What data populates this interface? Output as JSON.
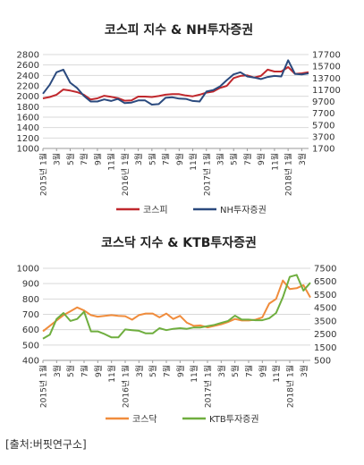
{
  "source": "[출처:버핏연구소]",
  "colors": {
    "red": "#c0282d",
    "navy": "#2b4a7e",
    "orange": "#f08c3c",
    "green": "#6fae3f",
    "grid": "#d9d9d9",
    "axis": "#999999"
  },
  "x_labels": [
    "2015년 1월",
    "3월",
    "5월",
    "7월",
    "9월",
    "11월",
    "2016년 1월",
    "3월",
    "5월",
    "7월",
    "9월",
    "11월",
    "2017년 1월",
    "3월",
    "5월",
    "7월",
    "9월",
    "11월",
    "2018년 1월",
    "3월"
  ],
  "chart_data": [
    {
      "type": "line",
      "title": "코스피 지수 & NH투자증권",
      "x": [
        "2015-01",
        "2015-02",
        "2015-03",
        "2015-04",
        "2015-05",
        "2015-06",
        "2015-07",
        "2015-08",
        "2015-09",
        "2015-10",
        "2015-11",
        "2015-12",
        "2016-01",
        "2016-02",
        "2016-03",
        "2016-04",
        "2016-05",
        "2016-06",
        "2016-07",
        "2016-08",
        "2016-09",
        "2016-10",
        "2016-11",
        "2016-12",
        "2017-01",
        "2017-02",
        "2017-03",
        "2017-04",
        "2017-05",
        "2017-06",
        "2017-07",
        "2017-08",
        "2017-09",
        "2017-10",
        "2017-11",
        "2017-12",
        "2018-01",
        "2018-02",
        "2018-03",
        "2018-04"
      ],
      "ylim_left": [
        1000,
        2800
      ],
      "yticks_left": [
        1000,
        1200,
        1400,
        1600,
        1800,
        2000,
        2200,
        2400,
        2600,
        2800
      ],
      "ylim_right": [
        1700,
        17700
      ],
      "yticks_right": [
        1700,
        3700,
        5700,
        7700,
        9700,
        11700,
        13700,
        15700,
        17700
      ],
      "legend_position": "bottom",
      "series": [
        {
          "name": "코스피",
          "axis": "left",
          "color_key": "red",
          "values": [
            1960,
            1985,
            2030,
            2130,
            2110,
            2080,
            2030,
            1940,
            1960,
            2010,
            1990,
            1965,
            1915,
            1920,
            1995,
            1995,
            1985,
            2005,
            2030,
            2040,
            2040,
            2015,
            2000,
            2030,
            2070,
            2090,
            2160,
            2200,
            2350,
            2390,
            2400,
            2360,
            2390,
            2510,
            2475,
            2475,
            2560,
            2430,
            2440,
            2460
          ]
        },
        {
          "name": "NH투자증권",
          "axis": "left",
          "color_key": "navy",
          "values": [
            2050,
            2220,
            2460,
            2510,
            2260,
            2160,
            2010,
            1900,
            1900,
            1940,
            1910,
            1950,
            1870,
            1880,
            1920,
            1920,
            1840,
            1850,
            1970,
            1980,
            1955,
            1950,
            1910,
            1900,
            2090,
            2120,
            2190,
            2310,
            2420,
            2460,
            2380,
            2360,
            2330,
            2370,
            2390,
            2380,
            2690,
            2430,
            2420,
            2440
          ]
        }
      ]
    },
    {
      "type": "line",
      "title": "코스닥 지수 & KTB투자증권",
      "x": [
        "2015-01",
        "2015-02",
        "2015-03",
        "2015-04",
        "2015-05",
        "2015-06",
        "2015-07",
        "2015-08",
        "2015-09",
        "2015-10",
        "2015-11",
        "2015-12",
        "2016-01",
        "2016-02",
        "2016-03",
        "2016-04",
        "2016-05",
        "2016-06",
        "2016-07",
        "2016-08",
        "2016-09",
        "2016-10",
        "2016-11",
        "2016-12",
        "2017-01",
        "2017-02",
        "2017-03",
        "2017-04",
        "2017-05",
        "2017-06",
        "2017-07",
        "2017-08",
        "2017-09",
        "2017-10",
        "2017-11",
        "2017-12",
        "2018-01",
        "2018-02",
        "2018-03",
        "2018-04"
      ],
      "ylim_left": [
        400,
        1000
      ],
      "yticks_left": [
        400,
        500,
        600,
        700,
        800,
        900,
        1000
      ],
      "ylim_right": [
        500,
        7500
      ],
      "yticks_right": [
        500,
        1500,
        2500,
        3500,
        4500,
        5500,
        6500,
        7500
      ],
      "legend_position": "bottom",
      "series": [
        {
          "name": "코스닥",
          "axis": "left",
          "color_key": "orange",
          "values": [
            590,
            625,
            660,
            695,
            720,
            745,
            725,
            695,
            685,
            690,
            695,
            690,
            688,
            665,
            695,
            705,
            705,
            680,
            705,
            670,
            690,
            645,
            625,
            628,
            615,
            625,
            635,
            650,
            670,
            660,
            660,
            665,
            680,
            770,
            800,
            920,
            865,
            870,
            890,
            810
          ]
        },
        {
          "name": "KTB투자증권",
          "axis": "right",
          "color_key": "green",
          "values": [
            2150,
            2450,
            3650,
            4100,
            3500,
            3650,
            4200,
            2700,
            2700,
            2500,
            2250,
            2250,
            2850,
            2800,
            2750,
            2550,
            2550,
            2950,
            2800,
            2900,
            2950,
            2900,
            3000,
            3000,
            3100,
            3200,
            3350,
            3500,
            3900,
            3600,
            3600,
            3550,
            3550,
            3700,
            4100,
            5300,
            6850,
            7000,
            5800,
            6400
          ]
        }
      ]
    }
  ]
}
